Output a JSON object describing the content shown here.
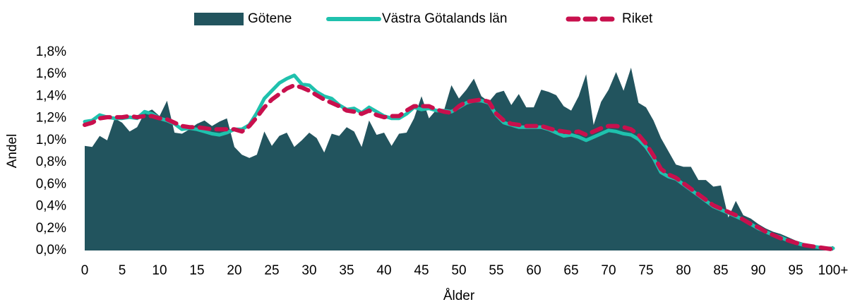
{
  "chart_data": {
    "type": "line",
    "x_label": "Ålder",
    "y_label": "Andel",
    "categories": [
      0,
      null,
      null,
      null,
      null,
      5,
      null,
      null,
      null,
      null,
      10,
      null,
      null,
      null,
      null,
      15,
      null,
      null,
      null,
      null,
      20,
      null,
      null,
      null,
      null,
      25,
      null,
      null,
      null,
      null,
      30,
      null,
      null,
      null,
      null,
      35,
      null,
      null,
      null,
      null,
      40,
      null,
      null,
      null,
      null,
      45,
      null,
      null,
      null,
      null,
      50,
      null,
      null,
      null,
      null,
      55,
      null,
      null,
      null,
      null,
      60,
      null,
      null,
      null,
      null,
      65,
      null,
      null,
      null,
      null,
      70,
      null,
      null,
      null,
      null,
      75,
      null,
      null,
      null,
      null,
      80,
      null,
      null,
      null,
      null,
      85,
      null,
      null,
      null,
      null,
      90,
      null,
      null,
      null,
      null,
      95,
      null,
      null,
      null,
      null,
      "100+"
    ],
    "ylim": [
      0,
      1.8
    ],
    "yticks": [
      {
        "value": 0,
        "label": "0,0%"
      },
      {
        "value": 0.2,
        "label": "0,2%"
      },
      {
        "value": 0.4,
        "label": "0,4%"
      },
      {
        "value": 0.6,
        "label": "0,6%"
      },
      {
        "value": 0.8,
        "label": "0,8%"
      },
      {
        "value": 1.0,
        "label": "1,0%"
      },
      {
        "value": 1.2,
        "label": "1,2%"
      },
      {
        "value": 1.4,
        "label": "1,4%"
      },
      {
        "value": 1.6,
        "label": "1,6%"
      },
      {
        "value": 1.8,
        "label": "1,8%"
      }
    ],
    "legend": "top",
    "series": [
      {
        "name": "Götene",
        "type": "area",
        "color": "#22545e",
        "values": [
          0.95,
          0.94,
          1.04,
          1.0,
          1.2,
          1.16,
          1.08,
          1.12,
          1.25,
          1.28,
          1.22,
          1.36,
          1.07,
          1.06,
          1.1,
          1.15,
          1.18,
          1.13,
          1.17,
          1.2,
          0.94,
          0.87,
          0.84,
          0.87,
          1.08,
          0.95,
          1.04,
          1.07,
          0.94,
          1.0,
          1.07,
          1.02,
          0.89,
          1.06,
          1.04,
          1.12,
          1.08,
          0.94,
          1.18,
          1.05,
          1.07,
          0.95,
          1.06,
          1.07,
          1.2,
          1.4,
          1.2,
          1.28,
          1.27,
          1.5,
          1.38,
          1.46,
          1.56,
          1.4,
          1.35,
          1.43,
          1.45,
          1.32,
          1.42,
          1.3,
          1.3,
          1.46,
          1.44,
          1.41,
          1.31,
          1.27,
          1.4,
          1.6,
          1.14,
          1.35,
          1.46,
          1.62,
          1.45,
          1.66,
          1.34,
          1.3,
          1.18,
          1.02,
          0.9,
          0.78,
          0.76,
          0.76,
          0.64,
          0.64,
          0.58,
          0.59,
          0.3,
          0.45,
          0.32,
          0.29,
          0.24,
          0.2,
          0.17,
          0.15,
          0.12,
          0.09,
          0.07,
          0.05,
          0.03,
          0.02,
          0.04
        ]
      },
      {
        "name": "Västra Götalands län",
        "type": "line",
        "color": "#1fc1ad",
        "values": [
          1.17,
          1.18,
          1.23,
          1.21,
          1.2,
          1.2,
          1.21,
          1.2,
          1.26,
          1.24,
          1.2,
          1.18,
          1.15,
          1.1,
          1.11,
          1.1,
          1.08,
          1.06,
          1.05,
          1.07,
          1.1,
          1.1,
          1.14,
          1.25,
          1.38,
          1.45,
          1.52,
          1.56,
          1.59,
          1.51,
          1.5,
          1.44,
          1.4,
          1.38,
          1.32,
          1.28,
          1.29,
          1.25,
          1.3,
          1.26,
          1.22,
          1.2,
          1.2,
          1.24,
          1.3,
          1.28,
          1.29,
          1.27,
          1.27,
          1.26,
          1.3,
          1.34,
          1.36,
          1.36,
          1.34,
          1.23,
          1.16,
          1.14,
          1.12,
          1.12,
          1.12,
          1.12,
          1.1,
          1.07,
          1.04,
          1.05,
          1.03,
          1.0,
          1.03,
          1.06,
          1.09,
          1.08,
          1.06,
          1.05,
          1.01,
          0.94,
          0.84,
          0.71,
          0.67,
          0.65,
          0.6,
          0.55,
          0.5,
          0.45,
          0.4,
          0.37,
          0.34,
          0.31,
          0.28,
          0.24,
          0.2,
          0.17,
          0.14,
          0.12,
          0.09,
          0.07,
          0.05,
          0.04,
          0.03,
          0.02,
          0.02
        ]
      },
      {
        "name": "Riket",
        "type": "line",
        "dashed": true,
        "color": "#c8104d",
        "values": [
          1.14,
          1.16,
          1.2,
          1.21,
          1.21,
          1.21,
          1.22,
          1.21,
          1.22,
          1.22,
          1.2,
          1.19,
          1.16,
          1.13,
          1.12,
          1.12,
          1.11,
          1.1,
          1.1,
          1.1,
          1.1,
          1.08,
          1.13,
          1.21,
          1.3,
          1.37,
          1.42,
          1.47,
          1.5,
          1.48,
          1.45,
          1.41,
          1.37,
          1.34,
          1.31,
          1.27,
          1.26,
          1.24,
          1.27,
          1.23,
          1.21,
          1.22,
          1.22,
          1.27,
          1.31,
          1.31,
          1.31,
          1.28,
          1.26,
          1.25,
          1.31,
          1.35,
          1.36,
          1.37,
          1.35,
          1.24,
          1.18,
          1.15,
          1.14,
          1.13,
          1.13,
          1.13,
          1.11,
          1.09,
          1.08,
          1.07,
          1.08,
          1.05,
          1.08,
          1.11,
          1.13,
          1.13,
          1.12,
          1.1,
          1.05,
          0.97,
          0.86,
          0.74,
          0.69,
          0.66,
          0.61,
          0.56,
          0.51,
          0.46,
          0.41,
          0.38,
          0.35,
          0.32,
          0.28,
          0.24,
          0.21,
          0.17,
          0.14,
          0.11,
          0.09,
          0.07,
          0.05,
          0.04,
          0.03,
          0.02,
          0.01
        ]
      }
    ]
  }
}
